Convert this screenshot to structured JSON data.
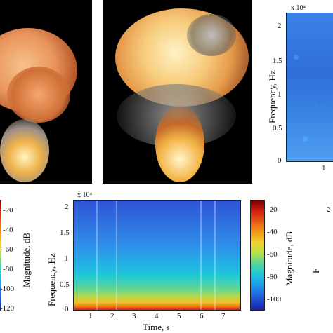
{
  "top_right_spectrogram": {
    "multiplier": "x 10⁴",
    "y_ticks": [
      "2",
      "1.5",
      "1",
      "0.5",
      "0"
    ],
    "x_ticks": [
      "1"
    ],
    "ylabel": "Frequency, Hz"
  },
  "bottom_spectrogram": {
    "multiplier": "x 10⁴",
    "y_ticks": [
      "2",
      "1.5",
      "1",
      "0.5",
      "0"
    ],
    "x_ticks": [
      "1",
      "2",
      "3",
      "4",
      "5",
      "6",
      "7"
    ],
    "xlabel": "Time, s",
    "ylabel": "Frequency, Hz"
  },
  "bottom_colorbar": {
    "ticks": [
      "-20",
      "-40",
      "-60",
      "-80",
      "-100"
    ],
    "label": "Magnitude, dB"
  },
  "left_colorbar": {
    "ticks": [
      "-20",
      "-40",
      "-60",
      "-80",
      "-100",
      "-120"
    ],
    "label": "Magnitude, dB"
  },
  "right_edge": {
    "tick": "2",
    "label_fragment": "F"
  }
}
